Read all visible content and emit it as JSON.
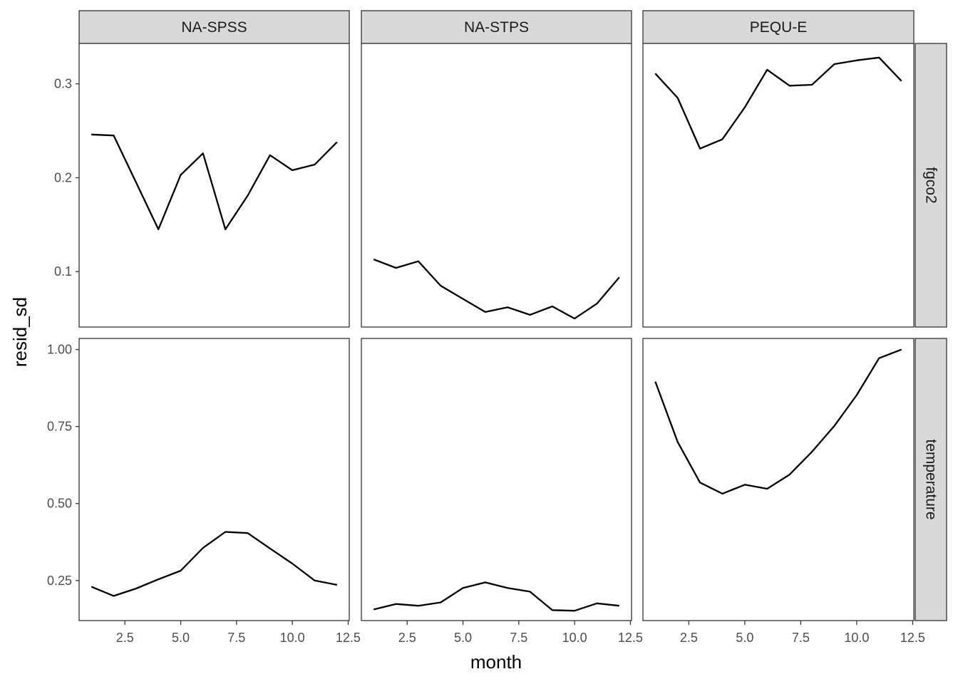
{
  "chart_data": {
    "type": "line",
    "xlabel": "month",
    "ylabel": "resid_sd",
    "columns": [
      "NA-SPSS",
      "NA-STPS",
      "PEQU-E"
    ],
    "rows": [
      "fgco2",
      "temperature"
    ],
    "x_ticks": [
      "2.5",
      "5.0",
      "7.5",
      "10.0",
      "12.5"
    ],
    "x_tick_values": [
      2.5,
      5.0,
      7.5,
      10.0,
      12.5
    ],
    "xlim": [
      0.45,
      12.55
    ],
    "y_ticks": {
      "fgco2": {
        "labels": [
          "0.1",
          "0.2",
          "0.3"
        ],
        "values": [
          0.1,
          0.2,
          0.3
        ]
      },
      "temperature": {
        "labels": [
          "0.25",
          "0.50",
          "0.75",
          "1.00"
        ],
        "values": [
          0.25,
          0.5,
          0.75,
          1.0
        ]
      }
    },
    "ylim": {
      "fgco2": [
        0.041,
        0.343
      ],
      "temperature": [
        0.12,
        1.036
      ]
    },
    "panels": [
      {
        "row": "fgco2",
        "col": "NA-SPSS",
        "x": [
          1,
          2,
          3,
          4,
          5,
          6,
          7,
          8,
          9,
          10,
          11,
          12
        ],
        "y": [
          0.246,
          0.245,
          0.195,
          0.145,
          0.203,
          0.226,
          0.145,
          0.181,
          0.224,
          0.208,
          0.214,
          0.238
        ]
      },
      {
        "row": "fgco2",
        "col": "NA-STPS",
        "x": [
          1,
          2,
          3,
          4,
          5,
          6,
          7,
          8,
          9,
          10,
          11,
          12
        ],
        "y": [
          0.113,
          0.104,
          0.111,
          0.085,
          0.071,
          0.057,
          0.062,
          0.054,
          0.063,
          0.05,
          0.066,
          0.094
        ]
      },
      {
        "row": "fgco2",
        "col": "PEQU-E",
        "x": [
          1,
          2,
          3,
          4,
          5,
          6,
          7,
          8,
          9,
          10,
          11,
          12
        ],
        "y": [
          0.311,
          0.285,
          0.231,
          0.241,
          0.275,
          0.315,
          0.298,
          0.299,
          0.321,
          0.325,
          0.328,
          0.303
        ]
      },
      {
        "row": "temperature",
        "col": "NA-SPSS",
        "x": [
          1,
          2,
          3,
          4,
          5,
          6,
          7,
          8,
          9,
          10,
          11,
          12
        ],
        "y": [
          0.23,
          0.2,
          0.224,
          0.254,
          0.282,
          0.356,
          0.408,
          0.404,
          0.354,
          0.305,
          0.25,
          0.236
        ]
      },
      {
        "row": "temperature",
        "col": "NA-STPS",
        "x": [
          1,
          2,
          3,
          4,
          5,
          6,
          7,
          8,
          9,
          10,
          11,
          12
        ],
        "y": [
          0.156,
          0.174,
          0.168,
          0.179,
          0.226,
          0.244,
          0.226,
          0.214,
          0.154,
          0.152,
          0.176,
          0.168
        ]
      },
      {
        "row": "temperature",
        "col": "PEQU-E",
        "x": [
          1,
          2,
          3,
          4,
          5,
          6,
          7,
          8,
          9,
          10,
          11,
          12
        ],
        "y": [
          0.896,
          0.7,
          0.568,
          0.532,
          0.561,
          0.548,
          0.594,
          0.668,
          0.752,
          0.852,
          0.972,
          1.0
        ]
      }
    ]
  }
}
